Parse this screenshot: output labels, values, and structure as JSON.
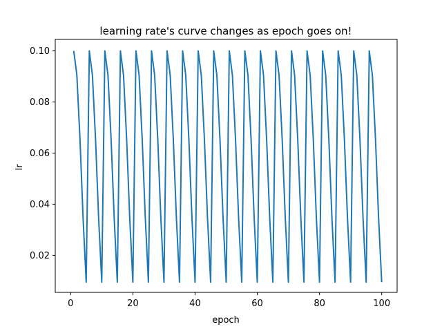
{
  "chart_data": {
    "type": "line",
    "title": "learning rate's curve changes as epoch goes on!",
    "xlabel": "epoch",
    "ylabel": "lr",
    "xlim": [
      -4.95,
      104.95
    ],
    "ylim": [
      0.0055,
      0.1045
    ],
    "xticks": [
      0,
      20,
      40,
      60,
      80,
      100
    ],
    "yticks": [
      0.02,
      0.04,
      0.06,
      0.08,
      0.1
    ],
    "xtick_labels": [
      "0",
      "20",
      "40",
      "60",
      "80",
      "100"
    ],
    "ytick_labels": [
      "0.02",
      "0.04",
      "0.06",
      "0.08",
      "0.10"
    ],
    "grid": false,
    "legend": false,
    "series": [
      {
        "color": "#1f77b4",
        "cycle_length": 5,
        "cycle_values": [
          0.1,
          0.0905,
          0.0655,
          0.0345,
          0.0095
        ],
        "x_start": 1,
        "x_end": 100
      }
    ]
  }
}
